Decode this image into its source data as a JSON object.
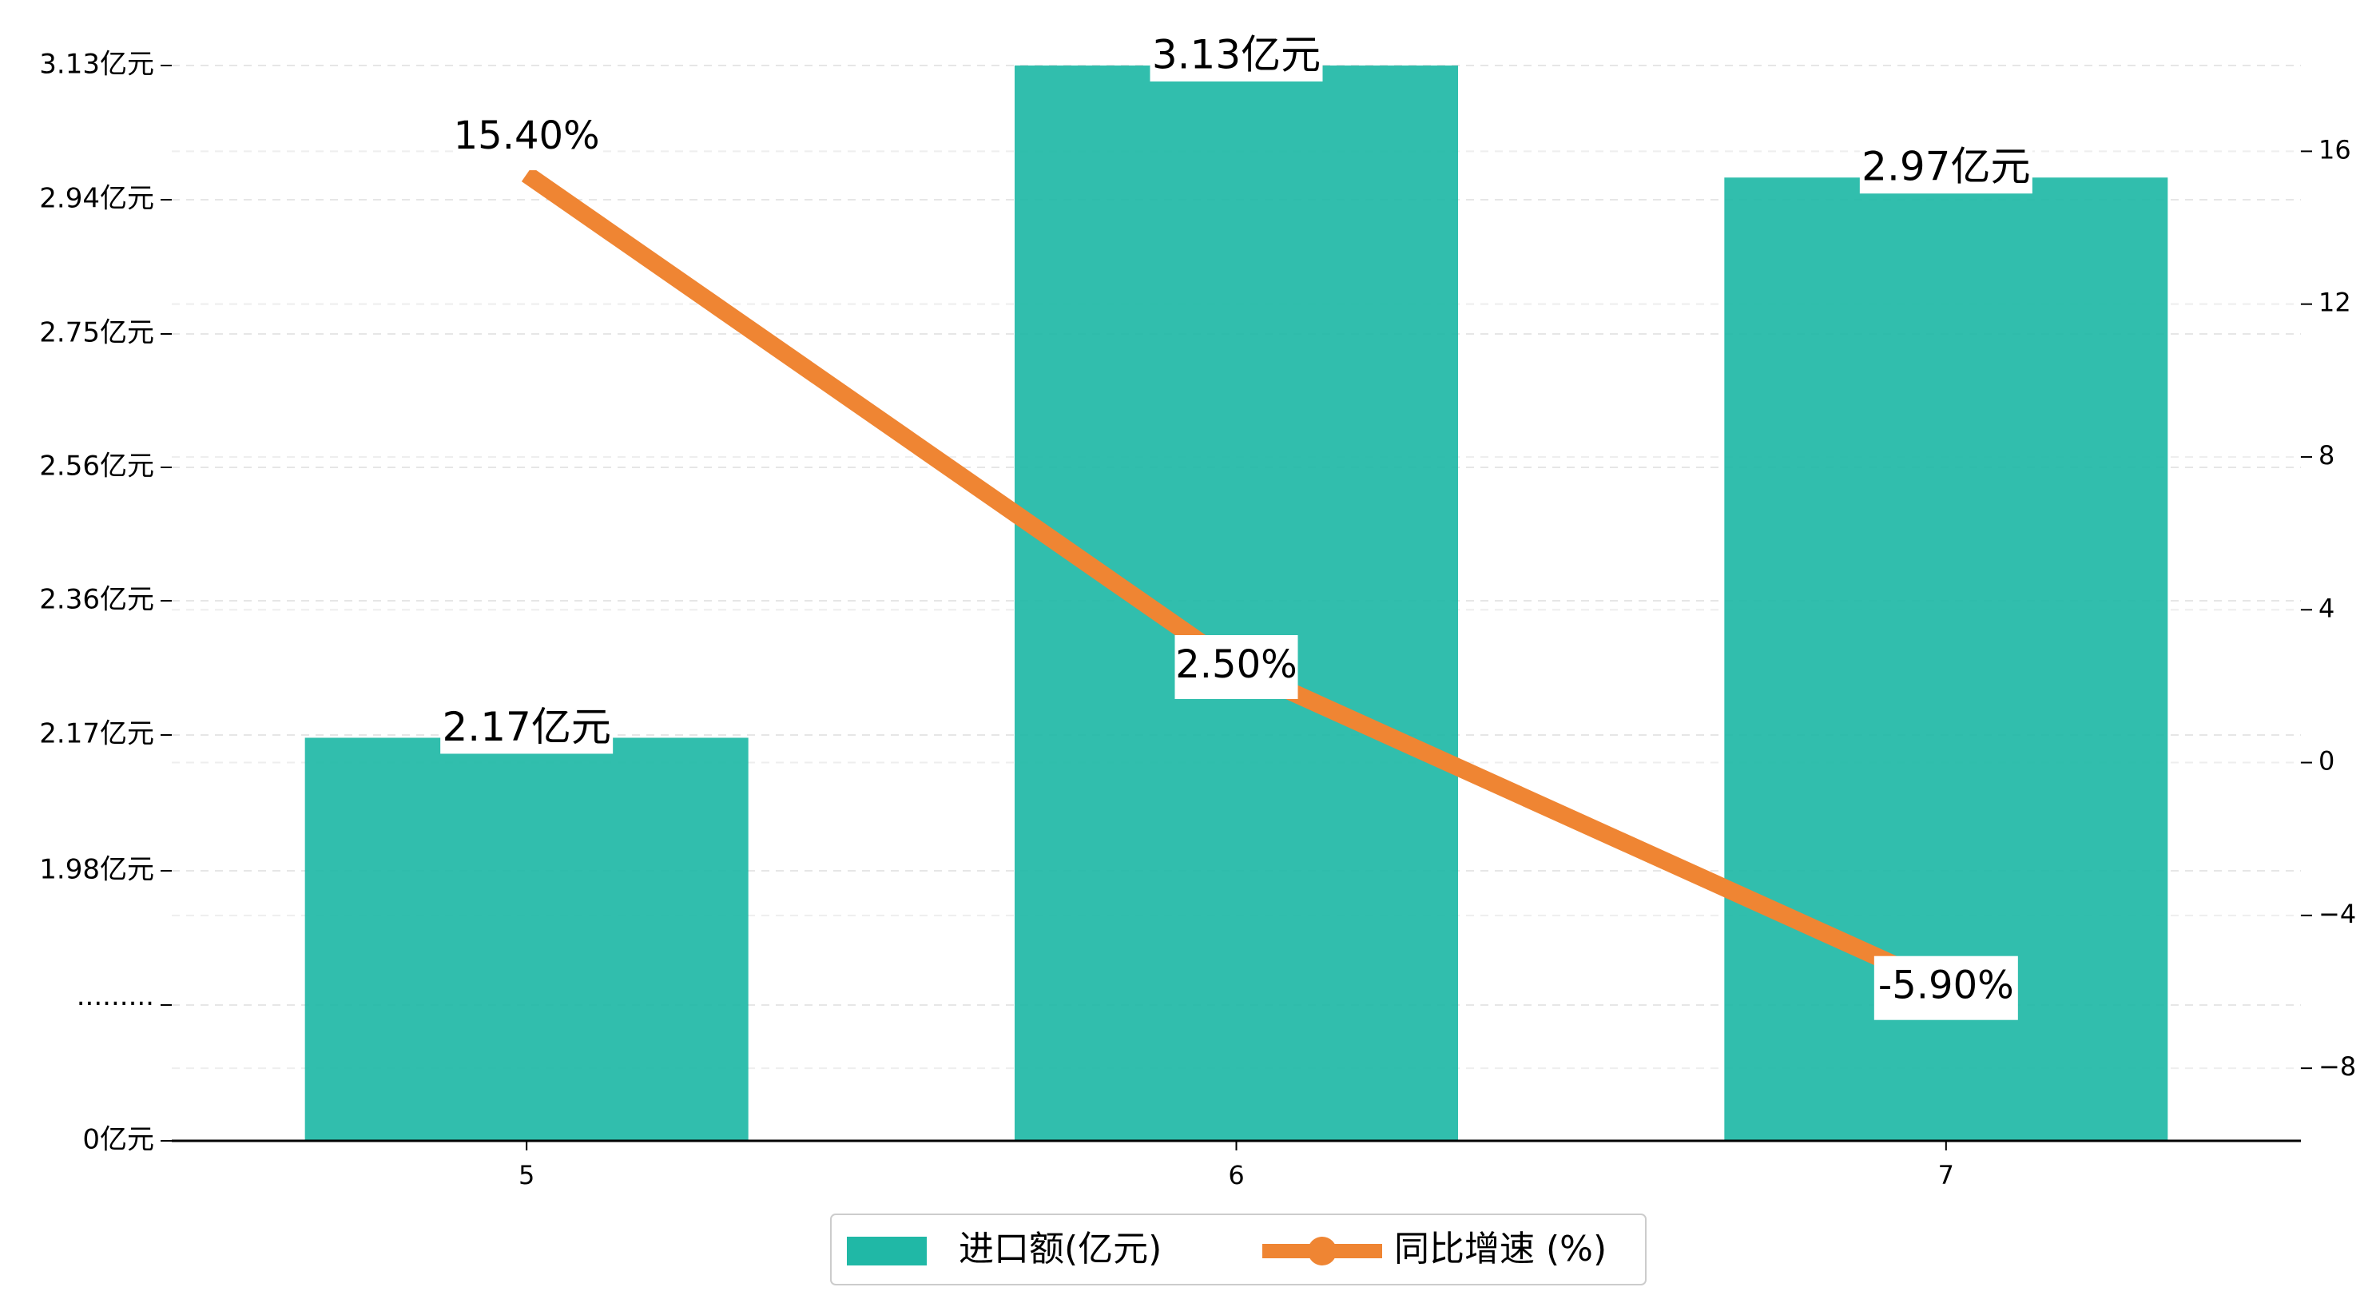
{
  "chart_data": {
    "type": "bar",
    "categories": [
      "5",
      "6",
      "7"
    ],
    "y_left": {
      "tick_labels": [
        "0亿元",
        "·········",
        "1.98亿元",
        "2.17亿元",
        "2.36亿元",
        "2.56亿元",
        "2.75亿元",
        "2.94亿元",
        "3.13亿元"
      ]
    },
    "y_right": {
      "ticks": [
        -8,
        -4,
        0,
        4,
        8,
        12,
        16
      ],
      "ylim": [
        -9.9,
        19.5
      ]
    },
    "series": [
      {
        "name": "进口额(亿元)",
        "type": "bar",
        "axis": "left",
        "values": [
          2.17,
          3.13,
          2.97
        ],
        "labels": [
          "2.17亿元",
          "3.13亿元",
          "2.97亿元"
        ],
        "color": "#20b8a6"
      },
      {
        "name": "同比增速 (%)",
        "type": "line",
        "axis": "right",
        "values": [
          15.4,
          2.5,
          -5.9
        ],
        "labels": [
          "15.40%",
          "2.50%",
          "-5.90%"
        ],
        "color": "#ef8533"
      }
    ],
    "grid": true,
    "legend_position": "bottom-center"
  }
}
